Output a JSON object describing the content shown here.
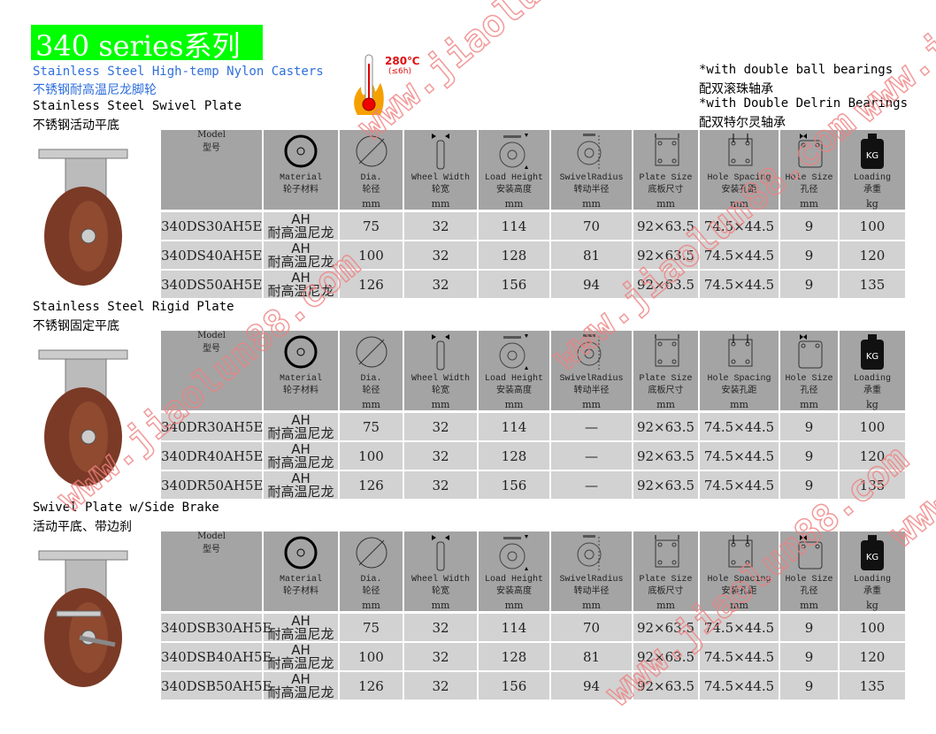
{
  "header": {
    "title": "340 series系列",
    "subtitle_en": "Stainless Steel High-temp Nylon Casters",
    "subtitle_cn": "不锈钢耐高温尼龙脚轮",
    "temperature": "280℃",
    "duration": "(≤6h)",
    "notes": [
      "*with double ball bearings",
      "配双滚珠轴承",
      "*with Double Delrin Bearings",
      "配双特尔灵轴承"
    ],
    "title_bg_color": "#00ff00",
    "subtitle_color": "#2f6fdc"
  },
  "columns": [
    {
      "en": "Model",
      "cn": "型号",
      "unit": "",
      "icon": "model"
    },
    {
      "en": "Material",
      "cn": "轮子材料",
      "unit": "",
      "icon": "wheel-material-icon"
    },
    {
      "en": "Dia.",
      "cn": "轮径",
      "unit": "mm",
      "icon": "diameter-icon"
    },
    {
      "en": "Wheel Width",
      "cn": "轮宽",
      "unit": "mm",
      "icon": "wheel-width-icon"
    },
    {
      "en": "Load Height",
      "cn": "安装高度",
      "unit": "mm",
      "icon": "load-height-icon"
    },
    {
      "en": "SwivelRadius",
      "cn": "转动半径",
      "unit": "mm",
      "icon": "swivel-radius-icon"
    },
    {
      "en": "Plate Size",
      "cn": "底板尺寸",
      "unit": "mm",
      "icon": "plate-size-icon"
    },
    {
      "en": "Hole Spacing",
      "cn": "安装孔距",
      "unit": "mm",
      "icon": "hole-spacing-icon"
    },
    {
      "en": "Hole Size",
      "cn": "孔径",
      "unit": "mm",
      "icon": "hole-size-icon"
    },
    {
      "en": "Loading",
      "cn": "承重",
      "unit": "kg",
      "icon": "weight-kg-icon",
      "icon_text": "KG"
    }
  ],
  "sections": [
    {
      "title_en": "Stainless Steel Swivel Plate",
      "title_cn": "不锈钢活动平底",
      "rows": [
        {
          "model": "340DS30AH5E",
          "mat": "AH",
          "mat_cn": "耐高温尼龙",
          "dia": "75",
          "width": "32",
          "height": "114",
          "radius": "70",
          "plate": "92×63.5",
          "spacing": "74.5×44.5",
          "hole": "9",
          "load": "100"
        },
        {
          "model": "340DS40AH5E",
          "mat": "AH",
          "mat_cn": "耐高温尼龙",
          "dia": "100",
          "width": "32",
          "height": "128",
          "radius": "81",
          "plate": "92×63.5",
          "spacing": "74.5×44.5",
          "hole": "9",
          "load": "120"
        },
        {
          "model": "340DS50AH5E",
          "mat": "AH",
          "mat_cn": "耐高温尼龙",
          "dia": "126",
          "width": "32",
          "height": "156",
          "radius": "94",
          "plate": "92×63.5",
          "spacing": "74.5×44.5",
          "hole": "9",
          "load": "135"
        }
      ]
    },
    {
      "title_en": "Stainless Steel Rigid Plate",
      "title_cn": "不锈钢固定平底",
      "rows": [
        {
          "model": "340DR30AH5E",
          "mat": "AH",
          "mat_cn": "耐高温尼龙",
          "dia": "75",
          "width": "32",
          "height": "114",
          "radius": "—",
          "plate": "92×63.5",
          "spacing": "74.5×44.5",
          "hole": "9",
          "load": "100"
        },
        {
          "model": "340DR40AH5E",
          "mat": "AH",
          "mat_cn": "耐高温尼龙",
          "dia": "100",
          "width": "32",
          "height": "128",
          "radius": "—",
          "plate": "92×63.5",
          "spacing": "74.5×44.5",
          "hole": "9",
          "load": "120"
        },
        {
          "model": "340DR50AH5E",
          "mat": "AH",
          "mat_cn": "耐高温尼龙",
          "dia": "126",
          "width": "32",
          "height": "156",
          "radius": "—",
          "plate": "92×63.5",
          "spacing": "74.5×44.5",
          "hole": "9",
          "load": "135"
        }
      ]
    },
    {
      "title_en": "Swivel Plate w/Side Brake",
      "title_cn": "活动平底、带边刹",
      "rows": [
        {
          "model": "340DSB30AH5E",
          "mat": "AH",
          "mat_cn": "耐高温尼龙",
          "dia": "75",
          "width": "32",
          "height": "114",
          "radius": "70",
          "plate": "92×63.5",
          "spacing": "74.5×44.5",
          "hole": "9",
          "load": "100"
        },
        {
          "model": "340DSB40AH5E",
          "mat": "AH",
          "mat_cn": "耐高温尼龙",
          "dia": "100",
          "width": "32",
          "height": "128",
          "radius": "81",
          "plate": "92×63.5",
          "spacing": "74.5×44.5",
          "hole": "9",
          "load": "120"
        },
        {
          "model": "340DSB50AH5E",
          "mat": "AH",
          "mat_cn": "耐高温尼龙",
          "dia": "126",
          "width": "32",
          "height": "156",
          "radius": "94",
          "plate": "92×63.5",
          "spacing": "74.5×44.5",
          "hole": "9",
          "load": "135"
        }
      ]
    }
  ],
  "watermark": "www.jiaolun88.com"
}
